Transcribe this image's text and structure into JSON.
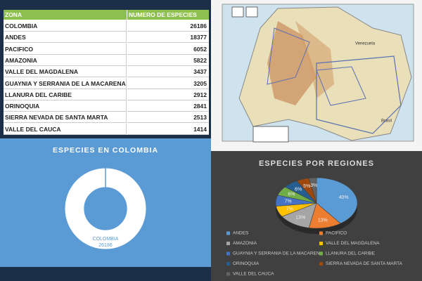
{
  "table": {
    "header": [
      "ZONA",
      "NUMERO DE ESPECIES"
    ],
    "rows": [
      [
        "COLOMBIA",
        26186
      ],
      [
        "ANDES",
        18377
      ],
      [
        "PACIFICO",
        6052
      ],
      [
        "AMAZONIA",
        5822
      ],
      [
        "VALLE DEL MAGDALENA",
        3437
      ],
      [
        "GUAYNIA Y SERRANIA DE LA MACARENA",
        3205
      ],
      [
        "LLANURA DEL CARIBE",
        2912
      ],
      [
        "ORINOQUIA",
        2841
      ],
      [
        "SIERRA NEVADA DE SANTA MARTA",
        2513
      ],
      [
        "VALLE DEL CAUCA",
        1414
      ]
    ]
  },
  "map": {
    "labels": [
      "Venezuela",
      "Brasil"
    ]
  },
  "chart_data": [
    {
      "type": "donut",
      "title": "ESPECIES EN COLOMBIA",
      "categories": [
        "COLOMBIA"
      ],
      "values": [
        26186
      ],
      "colors": [
        "#ffffff"
      ]
    },
    {
      "type": "pie",
      "title": "ESPECIES POR REGIONES",
      "categories": [
        "ANDES",
        "PACIFICO",
        "AMAZONIA",
        "VALLE DEL MAGDALENA",
        "GUAYNIA Y SERRANIA DE LA MACARENA",
        "LLANURA DEL CARIBE",
        "ORINOQUIA",
        "SIERRA NEVADA DE SANTA MARTA",
        "VALLE DEL CAUCA"
      ],
      "values": [
        40,
        13,
        13,
        7,
        7,
        6,
        6,
        5,
        3
      ],
      "value_labels": [
        "40%",
        "13%",
        "13%",
        "7%",
        "7%",
        "6%",
        "6%",
        "5%",
        "3%"
      ],
      "colors": [
        "#5b9bd5",
        "#ed7d31",
        "#a5a5a5",
        "#ffc000",
        "#4472c4",
        "#70ad47",
        "#255e91",
        "#9e480e",
        "#636363"
      ],
      "legend": "bottom"
    }
  ]
}
